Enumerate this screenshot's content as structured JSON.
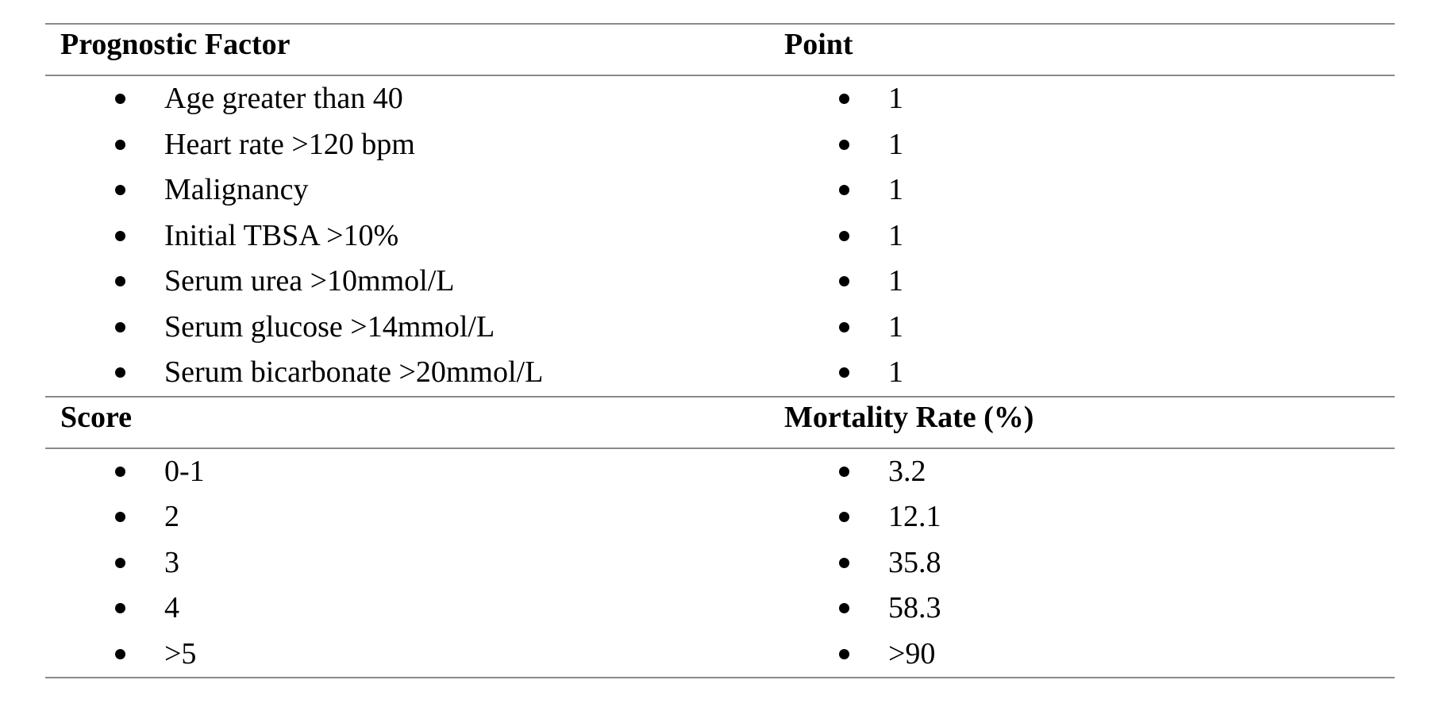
{
  "section1": {
    "headers": [
      "Prognostic Factor",
      "Point"
    ],
    "rows": [
      {
        "factor": "Age greater than 40",
        "point": "1"
      },
      {
        "factor": "Heart rate >120 bpm",
        "point": "1"
      },
      {
        "factor": "Malignancy",
        "point": "1"
      },
      {
        "factor": "Initial TBSA >10%",
        "point": "1"
      },
      {
        "factor": "Serum urea >10mmol/L",
        "point": "1"
      },
      {
        "factor": "Serum glucose >14mmol/L",
        "point": "1"
      },
      {
        "factor": "Serum bicarbonate >20mmol/L",
        "point": "1"
      }
    ]
  },
  "section2": {
    "headers": [
      "Score",
      "Mortality Rate (%)"
    ],
    "rows": [
      {
        "score": "0-1",
        "rate": "3.2"
      },
      {
        "score": "2",
        "rate": "12.1"
      },
      {
        "score": "3",
        "rate": "35.8"
      },
      {
        "score": "4",
        "rate": "58.3"
      },
      {
        "score": ">5",
        "rate": ">90"
      }
    ]
  }
}
